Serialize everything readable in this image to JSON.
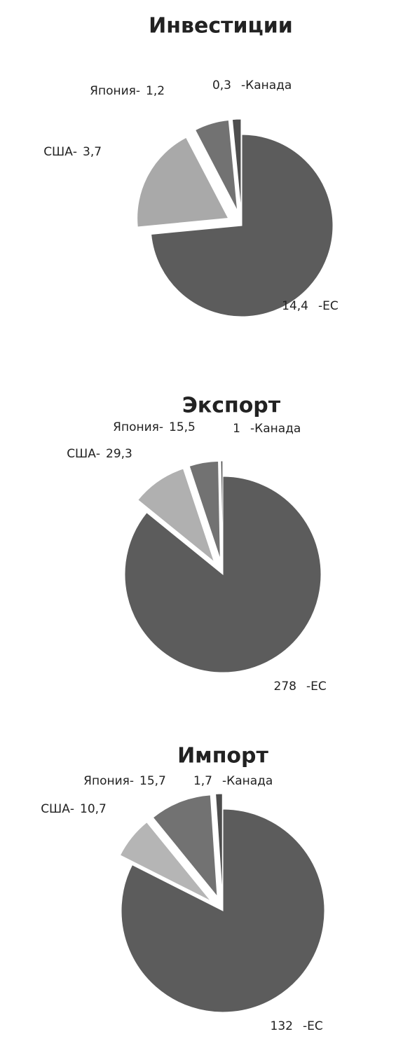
{
  "chart_data": [
    {
      "type": "pie",
      "title": "Инвестиции",
      "categories": [
        "-ЕС",
        "США-",
        "Япония-",
        "-Канада"
      ],
      "values": [
        14.4,
        3.7,
        1.2,
        0.3
      ],
      "value_labels": [
        "14,4",
        "3,7",
        "1,2",
        "0,3"
      ],
      "colors": [
        "#5c5c5c",
        "#a9a9a9",
        "#727272",
        "#4d4d4d"
      ]
    },
    {
      "type": "pie",
      "title": "Экспорт",
      "categories": [
        "-ЕС",
        "США-",
        "Япония-",
        "-Канада"
      ],
      "values": [
        278,
        29.3,
        15.5,
        1
      ],
      "value_labels": [
        "278",
        "29,3",
        "15,5",
        "1"
      ],
      "colors": [
        "#5c5c5c",
        "#b0b0b0",
        "#727272",
        "#4d4d4d"
      ]
    },
    {
      "type": "pie",
      "title": "Импорт",
      "categories": [
        "-ЕС",
        "США-",
        "Япония-",
        "-Канада"
      ],
      "values": [
        132,
        10.7,
        15.7,
        1.7
      ],
      "value_labels": [
        "132",
        "10,7",
        "15,7",
        "1,7"
      ],
      "colors": [
        "#5c5c5c",
        "#b5b5b5",
        "#727272",
        "#4d4d4d"
      ]
    }
  ]
}
